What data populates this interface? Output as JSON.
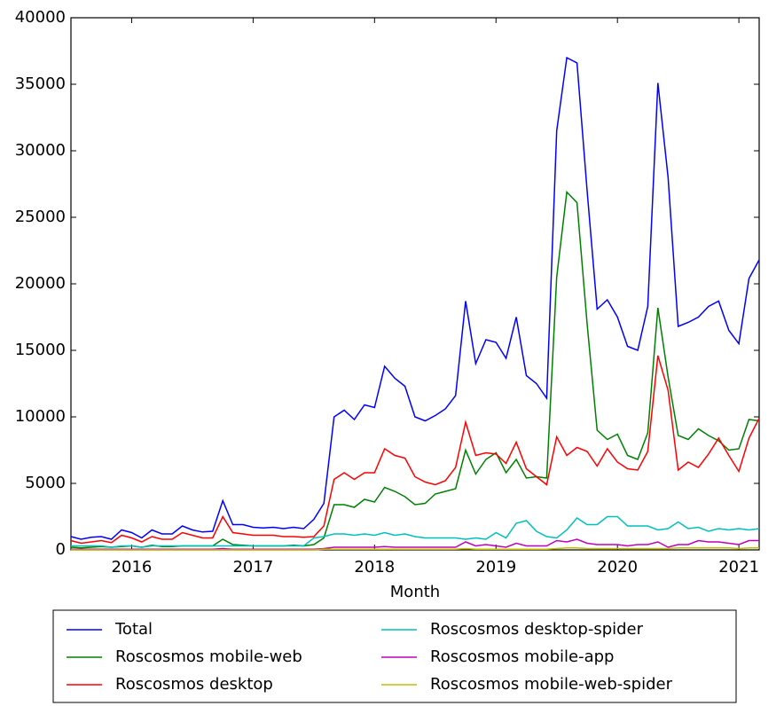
{
  "chart_data": {
    "type": "line",
    "xlabel": "Month",
    "x": [
      2015.5,
      2015.583,
      2015.667,
      2015.75,
      2015.833,
      2015.917,
      2016,
      2016.083,
      2016.167,
      2016.25,
      2016.333,
      2016.417,
      2016.5,
      2016.583,
      2016.667,
      2016.75,
      2016.833,
      2016.917,
      2017,
      2017.083,
      2017.167,
      2017.25,
      2017.333,
      2017.417,
      2017.5,
      2017.583,
      2017.667,
      2017.75,
      2017.833,
      2017.917,
      2018,
      2018.083,
      2018.167,
      2018.25,
      2018.333,
      2018.417,
      2018.5,
      2018.583,
      2018.667,
      2018.75,
      2018.833,
      2018.917,
      2019,
      2019.083,
      2019.167,
      2019.25,
      2019.333,
      2019.417,
      2019.5,
      2019.583,
      2019.667,
      2019.75,
      2019.833,
      2019.917,
      2020,
      2020.083,
      2020.167,
      2020.25,
      2020.333,
      2020.417,
      2020.5,
      2020.583,
      2020.667,
      2020.75,
      2020.833,
      2020.917,
      2021,
      2021.083,
      2021.167
    ],
    "xlim": [
      2015.5,
      2021.167
    ],
    "xticks": [
      2016,
      2017,
      2018,
      2019,
      2020,
      2021
    ],
    "ylim": [
      0,
      40000
    ],
    "yticks": [
      0,
      5000,
      10000,
      15000,
      20000,
      25000,
      30000,
      35000,
      40000
    ],
    "series": [
      {
        "name": "Total",
        "color": "#0000ff",
        "values": [
          1000,
          800,
          950,
          1000,
          800,
          1500,
          1300,
          900,
          1500,
          1200,
          1200,
          1800,
          1500,
          1350,
          1400,
          3700,
          1900,
          1900,
          1700,
          1650,
          1700,
          1600,
          1700,
          1600,
          2300,
          3500,
          10000,
          10500,
          9800,
          10900,
          10700,
          13800,
          12900,
          12300,
          10000,
          9700,
          10100,
          10600,
          11600,
          18700,
          14000,
          15800,
          15600,
          14400,
          17500,
          13100,
          12500,
          11400,
          31500,
          37000,
          36600,
          27000,
          18100,
          18800,
          17500,
          15300,
          15000,
          18300,
          35100,
          28000,
          16800,
          17100,
          17500,
          18300,
          18700,
          16500,
          15500,
          20400,
          21800
        ]
      },
      {
        "name": "Roscosmos mobile-web",
        "color": "#008000",
        "values": [
          200,
          150,
          200,
          250,
          200,
          250,
          300,
          200,
          350,
          250,
          250,
          300,
          300,
          300,
          300,
          800,
          400,
          350,
          300,
          300,
          300,
          300,
          350,
          300,
          400,
          900,
          3400,
          3400,
          3200,
          3800,
          3600,
          4700,
          4400,
          4000,
          3400,
          3500,
          4200,
          4400,
          4600,
          7500,
          5700,
          6800,
          7300,
          5800,
          6800,
          5400,
          5500,
          5400,
          20500,
          26900,
          26100,
          17000,
          9000,
          8300,
          8700,
          7100,
          6800,
          8800,
          18200,
          13000,
          8600,
          8300,
          9100,
          8600,
          8200,
          7500,
          7600,
          9800,
          9700
        ]
      },
      {
        "name": "Roscosmos desktop",
        "color": "#ff0000",
        "values": [
          700,
          500,
          600,
          700,
          550,
          1100,
          900,
          600,
          1000,
          800,
          800,
          1300,
          1100,
          900,
          900,
          2500,
          1300,
          1200,
          1100,
          1100,
          1100,
          1000,
          1000,
          950,
          1000,
          1800,
          5300,
          5800,
          5300,
          5800,
          5800,
          7600,
          7100,
          6900,
          5500,
          5100,
          4900,
          5200,
          6200,
          9600,
          7100,
          7300,
          7200,
          6500,
          8100,
          6100,
          5500,
          4900,
          8500,
          7100,
          7700,
          7400,
          6300,
          7600,
          6600,
          6100,
          6000,
          7400,
          14600,
          12000,
          6000,
          6600,
          6200,
          7200,
          8400,
          7100,
          5900,
          8400,
          9900
        ]
      },
      {
        "name": "Roscosmos desktop-spider",
        "color": "#00bfbf",
        "values": [
          300,
          300,
          300,
          300,
          200,
          300,
          300,
          200,
          300,
          300,
          300,
          300,
          300,
          300,
          300,
          300,
          300,
          300,
          300,
          300,
          300,
          300,
          300,
          300,
          900,
          1000,
          1200,
          1200,
          1100,
          1200,
          1100,
          1300,
          1100,
          1200,
          1000,
          900,
          900,
          900,
          900,
          800,
          900,
          800,
          1300,
          900,
          2000,
          2200,
          1400,
          1000,
          900,
          1500,
          2400,
          1900,
          1900,
          2500,
          2500,
          1800,
          1800,
          1800,
          1500,
          1600,
          2100,
          1600,
          1700,
          1400,
          1600,
          1500,
          1600,
          1500,
          1600
        ]
      },
      {
        "name": "Roscosmos mobile-app",
        "color": "#bf00bf",
        "values": [
          50,
          50,
          50,
          50,
          50,
          50,
          50,
          50,
          50,
          50,
          50,
          50,
          50,
          50,
          50,
          100,
          50,
          50,
          50,
          50,
          50,
          50,
          50,
          50,
          50,
          100,
          200,
          200,
          200,
          200,
          200,
          250,
          200,
          200,
          200,
          200,
          200,
          200,
          200,
          600,
          300,
          400,
          300,
          200,
          500,
          300,
          300,
          300,
          700,
          600,
          800,
          500,
          400,
          400,
          400,
          300,
          400,
          400,
          600,
          200,
          400,
          400,
          700,
          600,
          600,
          500,
          400,
          700,
          700
        ]
      },
      {
        "name": "Roscosmos mobile-web-spider",
        "color": "#bfbf00",
        "values": [
          0,
          0,
          0,
          0,
          0,
          0,
          0,
          0,
          0,
          0,
          0,
          0,
          0,
          0,
          0,
          0,
          0,
          0,
          0,
          0,
          0,
          0,
          0,
          0,
          0,
          50,
          50,
          50,
          50,
          50,
          50,
          50,
          50,
          50,
          50,
          50,
          50,
          50,
          50,
          100,
          50,
          50,
          50,
          50,
          50,
          50,
          50,
          50,
          100,
          150,
          150,
          100,
          100,
          100,
          100,
          100,
          100,
          100,
          100,
          100,
          150,
          150,
          150,
          150,
          150,
          150,
          100,
          150,
          150
        ]
      }
    ]
  }
}
